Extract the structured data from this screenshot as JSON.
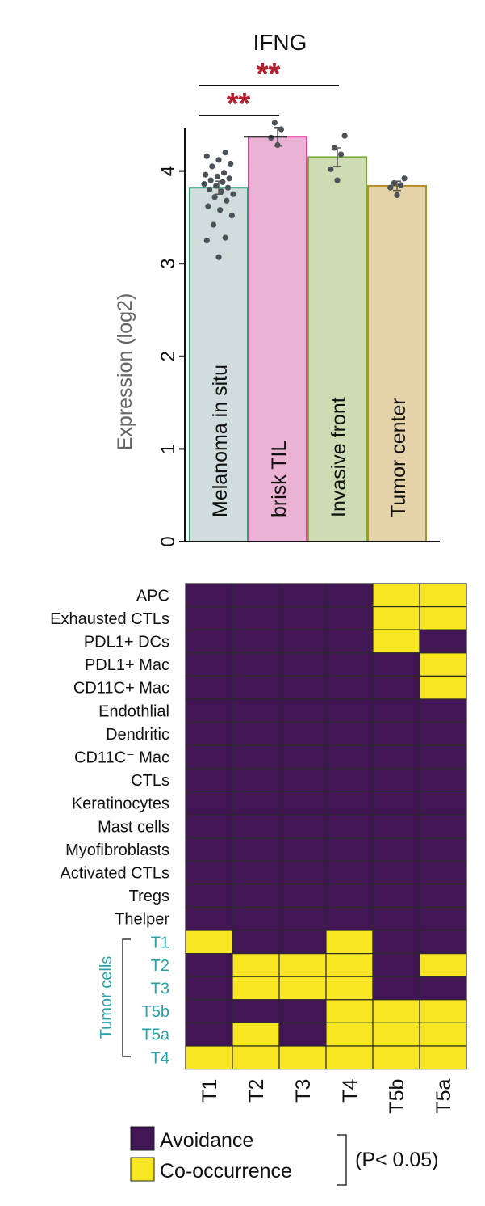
{
  "chart_data": [
    {
      "type": "bar",
      "title": "IFNG",
      "ylabel": "Expression (log2)",
      "ylim": [
        0,
        4.5
      ],
      "yticks": [
        0,
        1,
        2,
        3,
        4
      ],
      "categories": [
        "Melanoma in situ",
        "brisk TIL",
        "Invasive front",
        "Tumor center"
      ],
      "values": [
        3.82,
        4.37,
        4.15,
        3.84
      ],
      "error": [
        0.07,
        0.1,
        0.1,
        0.05
      ],
      "points": [
        [
          3.07,
          3.25,
          3.28,
          3.42,
          3.52,
          3.58,
          3.62,
          3.68,
          3.72,
          3.75,
          3.78,
          3.8,
          3.82,
          3.84,
          3.86,
          3.88,
          3.9,
          3.92,
          3.94,
          3.96,
          3.98,
          4.05,
          4.08,
          4.12,
          4.16,
          4.2
        ],
        [
          4.28,
          4.36,
          4.45,
          4.52
        ],
        [
          3.9,
          4.02,
          4.18,
          4.25,
          4.38
        ],
        [
          3.74,
          3.82,
          3.85,
          3.87,
          3.92
        ]
      ],
      "colors": {
        "fill": [
          "#d1dcdd",
          "#ebb3d3",
          "#cddcb3",
          "#e4d2a9"
        ],
        "edge": [
          "#2e9e77",
          "#d6449a",
          "#78a83a",
          "#b38f2a"
        ],
        "points": "#4a5158",
        "significance": "#b5202e"
      },
      "significance": [
        {
          "from": "Melanoma in situ",
          "to": "brisk TIL",
          "label": "**"
        },
        {
          "from": "Melanoma in situ",
          "to": "Invasive front",
          "label": "**"
        }
      ]
    },
    {
      "type": "heatmap",
      "rows": [
        "APC",
        "Exhausted CTLs",
        "PDL1+ DCs",
        "PDL1+ Mac",
        "CD11C+ Mac",
        "Endothlial",
        "Dendritic",
        "CD11C⁻ Mac",
        "CTLs",
        "Keratinocytes",
        "Mast cells",
        "Myofibroblasts",
        "Activated CTLs",
        "Tregs",
        "Thelper",
        "T1",
        "T2",
        "T3",
        "T5b",
        "T5a",
        "T4"
      ],
      "columns": [
        "T1",
        "T2",
        "T3",
        "T4",
        "T5b",
        "T5a"
      ],
      "values": [
        [
          0,
          0,
          0,
          0,
          1,
          1
        ],
        [
          0,
          0,
          0,
          0,
          1,
          1
        ],
        [
          0,
          0,
          0,
          0,
          1,
          0
        ],
        [
          0,
          0,
          0,
          0,
          0,
          1
        ],
        [
          0,
          0,
          0,
          0,
          0,
          1
        ],
        [
          0,
          0,
          0,
          0,
          0,
          0
        ],
        [
          0,
          0,
          0,
          0,
          0,
          0
        ],
        [
          0,
          0,
          0,
          0,
          0,
          0
        ],
        [
          0,
          0,
          0,
          0,
          0,
          0
        ],
        [
          0,
          0,
          0,
          0,
          0,
          0
        ],
        [
          0,
          0,
          0,
          0,
          0,
          0
        ],
        [
          0,
          0,
          0,
          0,
          0,
          0
        ],
        [
          0,
          0,
          0,
          0,
          0,
          0
        ],
        [
          0,
          0,
          0,
          0,
          0,
          0
        ],
        [
          0,
          0,
          0,
          0,
          0,
          0
        ],
        [
          1,
          0,
          0,
          1,
          0,
          0
        ],
        [
          0,
          1,
          1,
          1,
          0,
          1
        ],
        [
          0,
          1,
          1,
          1,
          0,
          0
        ],
        [
          0,
          0,
          0,
          1,
          1,
          1
        ],
        [
          0,
          1,
          0,
          1,
          1,
          1
        ],
        [
          1,
          1,
          1,
          1,
          1,
          1
        ]
      ],
      "tumor_group_label": "Tumor cells",
      "tumor_rows": [
        "T1",
        "T2",
        "T3",
        "T5b",
        "T5a",
        "T4"
      ],
      "legend": [
        {
          "label": "Avoidance",
          "color": "#421654"
        },
        {
          "label": "Co-occurrence",
          "color": "#f8e622"
        }
      ],
      "legend_note": "(P< 0.05)",
      "colors": {
        "grid": "#2a2a2a",
        "tumor_label": "#27a3a8"
      }
    }
  ]
}
